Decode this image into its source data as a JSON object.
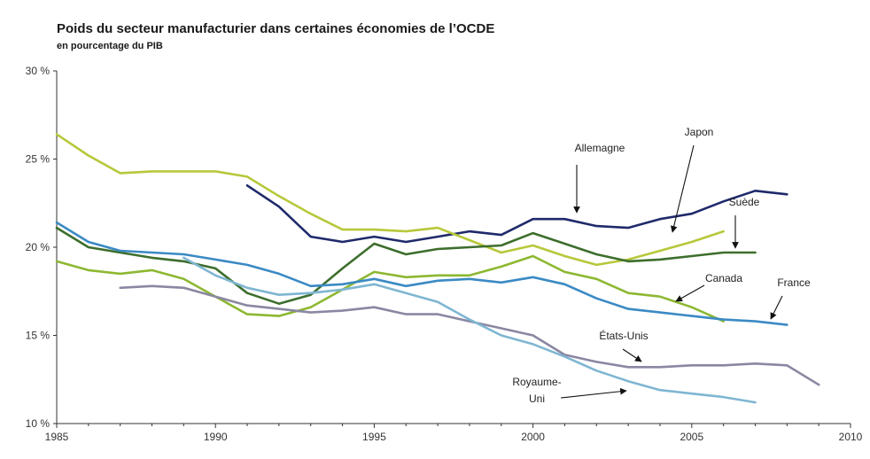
{
  "chart_data": {
    "type": "line",
    "title": "Poids du secteur manufacturier dans certaines économies de l’OCDE",
    "subtitle": "en pourcentage du PIB",
    "xlim": [
      1985,
      2010
    ],
    "ylim": [
      10,
      30
    ],
    "x_ticks": [
      1985,
      1990,
      1995,
      2000,
      2005,
      2010
    ],
    "y_ticks": [
      10,
      15,
      20,
      25,
      30
    ],
    "y_tick_labels": [
      "10 %",
      "15 %",
      "20 %",
      "25 %",
      "30 %"
    ],
    "grid": false,
    "series": [
      {
        "name": "Allemagne",
        "color": "#1f2a6b",
        "x": [
          1991,
          1992,
          1993,
          1994,
          1995,
          1996,
          1997,
          1998,
          1999,
          2000,
          2001,
          2002,
          2003,
          2004,
          2005,
          2006,
          2007,
          2008
        ],
        "y": [
          23.5,
          22.3,
          20.6,
          20.3,
          20.6,
          20.3,
          20.6,
          20.9,
          20.7,
          21.6,
          21.6,
          21.2,
          21.1,
          21.6,
          21.9,
          22.6,
          23.2,
          23.0
        ]
      },
      {
        "name": "Japon",
        "color": "#b7c83a",
        "x": [
          1985,
          1986,
          1987,
          1988,
          1989,
          1990,
          1991,
          1992,
          1993,
          1994,
          1995,
          1996,
          1997,
          1998,
          1999,
          2000,
          2001,
          2002,
          2003,
          2004,
          2005,
          2006
        ],
        "y": [
          26.4,
          25.2,
          24.2,
          24.3,
          24.3,
          24.3,
          24.0,
          22.9,
          21.9,
          21.0,
          21.0,
          20.9,
          21.1,
          20.4,
          19.7,
          20.1,
          19.5,
          19.0,
          19.3,
          19.8,
          20.3,
          20.9
        ]
      },
      {
        "name": "Suède",
        "color": "#3d6e2c",
        "x": [
          1985,
          1986,
          1987,
          1988,
          1989,
          1990,
          1991,
          1992,
          1993,
          1994,
          1995,
          1996,
          1997,
          1998,
          1999,
          2000,
          2001,
          2002,
          2003,
          2004,
          2005,
          2006,
          2007
        ],
        "y": [
          21.1,
          20.0,
          19.7,
          19.4,
          19.2,
          18.8,
          17.4,
          16.8,
          17.3,
          18.8,
          20.2,
          19.6,
          19.9,
          20.0,
          20.1,
          20.8,
          20.2,
          19.6,
          19.2,
          19.3,
          19.5,
          19.7,
          19.7
        ]
      },
      {
        "name": "Canada",
        "color": "#8db832",
        "x": [
          1985,
          1986,
          1987,
          1988,
          1989,
          1990,
          1991,
          1992,
          1993,
          1994,
          1995,
          1996,
          1997,
          1998,
          1999,
          2000,
          2001,
          2002,
          2003,
          2004,
          2005,
          2006
        ],
        "y": [
          19.2,
          18.7,
          18.5,
          18.7,
          18.2,
          17.2,
          16.2,
          16.1,
          16.6,
          17.6,
          18.6,
          18.3,
          18.4,
          18.4,
          18.9,
          19.5,
          18.6,
          18.2,
          17.4,
          17.2,
          16.6,
          15.8
        ]
      },
      {
        "name": "France",
        "color": "#3b8ac4",
        "x": [
          1985,
          1986,
          1987,
          1988,
          1989,
          1990,
          1991,
          1992,
          1993,
          1994,
          1995,
          1996,
          1997,
          1998,
          1999,
          2000,
          2001,
          2002,
          2003,
          2004,
          2005,
          2006,
          2007,
          2008
        ],
        "y": [
          21.4,
          20.3,
          19.8,
          19.7,
          19.6,
          19.3,
          19.0,
          18.5,
          17.8,
          17.9,
          18.2,
          17.8,
          18.1,
          18.2,
          18.0,
          18.3,
          17.9,
          17.1,
          16.5,
          16.3,
          16.1,
          15.9,
          15.8,
          15.6
        ]
      },
      {
        "name": "États-Unis",
        "color": "#8a87a2",
        "x": [
          1987,
          1988,
          1989,
          1990,
          1991,
          1992,
          1993,
          1994,
          1995,
          1996,
          1997,
          1998,
          1999,
          2000,
          2001,
          2002,
          2003,
          2004,
          2005,
          2006,
          2007,
          2008,
          2009
        ],
        "y": [
          17.7,
          17.8,
          17.7,
          17.2,
          16.7,
          16.5,
          16.3,
          16.4,
          16.6,
          16.2,
          16.2,
          15.8,
          15.4,
          15.0,
          13.9,
          13.5,
          13.2,
          13.2,
          13.3,
          13.3,
          13.4,
          13.3,
          12.2
        ]
      },
      {
        "name": "Royaume-Uni",
        "color": "#7fb6d2",
        "x": [
          1989,
          1990,
          1991,
          1992,
          1993,
          1994,
          1995,
          1996,
          1997,
          1998,
          1999,
          2000,
          2001,
          2002,
          2003,
          2004,
          2005,
          2006,
          2007
        ],
        "y": [
          19.4,
          18.4,
          17.7,
          17.3,
          17.4,
          17.6,
          17.9,
          17.4,
          16.9,
          15.9,
          15.0,
          14.5,
          13.8,
          13.0,
          12.4,
          11.9,
          11.7,
          11.5,
          11.2
        ]
      }
    ],
    "annotations": [
      {
        "text": "Allemagne"
      },
      {
        "text": "Japon"
      },
      {
        "text": "Suède"
      },
      {
        "text": "Canada"
      },
      {
        "text": "France"
      },
      {
        "text": "États-Unis"
      },
      {
        "text": "Royaume-",
        "text2": "Uni"
      }
    ]
  }
}
